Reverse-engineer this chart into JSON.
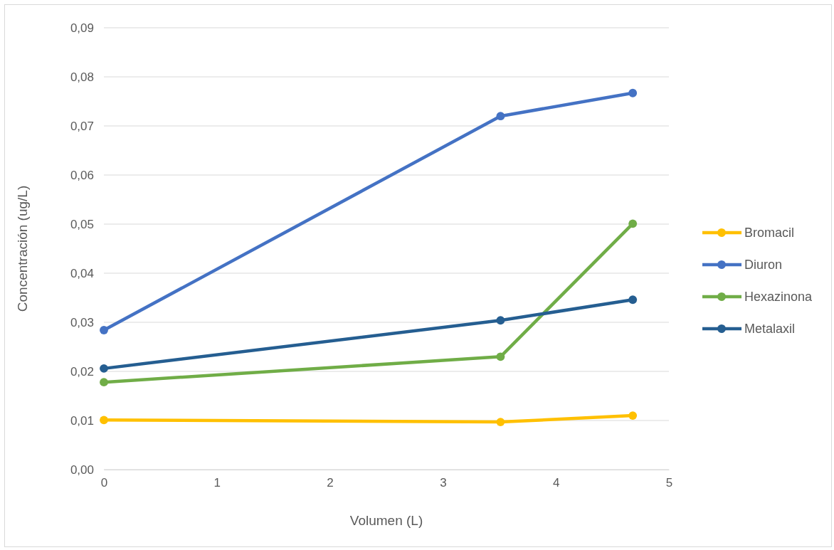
{
  "chart_data": {
    "type": "line",
    "xlabel": "Volumen (L)",
    "ylabel": "Concentración (ug/L)",
    "xlim": [
      0,
      5
    ],
    "xticks": [
      0,
      1,
      2,
      3,
      4,
      5
    ],
    "ylim": [
      0,
      0.09
    ],
    "yticks": [
      {
        "value": 0,
        "label": "0,00"
      },
      {
        "value": 0.01,
        "label": "0,01"
      },
      {
        "value": 0.02,
        "label": "0,02"
      },
      {
        "value": 0.03,
        "label": "0,03"
      },
      {
        "value": 0.04,
        "label": "0,04"
      },
      {
        "value": 0.05,
        "label": "0,05"
      },
      {
        "value": 0.06,
        "label": "0,06"
      },
      {
        "value": 0.07,
        "label": "0,07"
      },
      {
        "value": 0.08,
        "label": "0,08"
      },
      {
        "value": 0.09,
        "label": "0,09"
      }
    ],
    "grid": "y",
    "legend": "right",
    "marker": "circle",
    "line_style": "solid",
    "x": [
      0,
      3.51,
      4.68
    ],
    "series": [
      {
        "name": "Bromacil",
        "color": "#ffc000",
        "values": [
          0.0101,
          0.0097,
          0.011
        ]
      },
      {
        "name": "Diuron",
        "color": "#4472c4",
        "values": [
          0.0284,
          0.072,
          0.0767
        ]
      },
      {
        "name": "Hexazinona",
        "color": "#70ad47",
        "values": [
          0.0178,
          0.023,
          0.0501
        ]
      },
      {
        "name": "Metalaxil",
        "color": "#255e91",
        "values": [
          0.0206,
          0.0304,
          0.0346
        ]
      }
    ]
  }
}
